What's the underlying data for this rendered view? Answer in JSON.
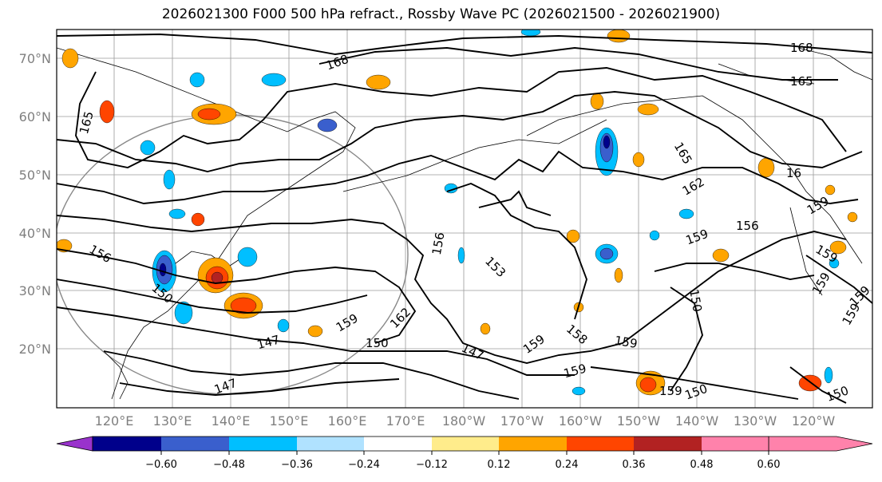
{
  "title": "2026021300 F000 500 hPa refract., Rossby Wave PC (2026021500 - 2026021900)",
  "lat_labels": [
    "70°N",
    "60°N",
    "50°N",
    "40°N",
    "30°N",
    "20°N"
  ],
  "lon_labels": [
    "120°E",
    "130°E",
    "140°E",
    "150°E",
    "160°E",
    "170°E",
    "180°W",
    "170°W",
    "160°W",
    "150°W",
    "140°W",
    "130°W",
    "120°W"
  ],
  "contour_labels": [
    "168",
    "168",
    "165",
    "165",
    "165",
    "162",
    "16",
    "159",
    "156",
    "156",
    "159",
    "150",
    "159",
    "156",
    "153",
    "162",
    "159",
    "159",
    "158",
    "159",
    "159",
    "150",
    "147",
    "147",
    "150",
    "147",
    "150",
    "150",
    "159",
    "159",
    "159",
    "159"
  ],
  "colorbar": {
    "colors": [
      "#9932cc",
      "#00008b",
      "#3a5fcd",
      "#00bfff",
      "#b0e2ff",
      "#ffffff",
      "#ffec8b",
      "#ffa500",
      "#ff4500",
      "#b22222",
      "#ff82ab"
    ],
    "ticks": [
      "−0.60",
      "−0.48",
      "−0.36",
      "−0.24",
      "−0.12",
      "0.12",
      "0.24",
      "0.36",
      "0.48",
      "0.60"
    ]
  }
}
